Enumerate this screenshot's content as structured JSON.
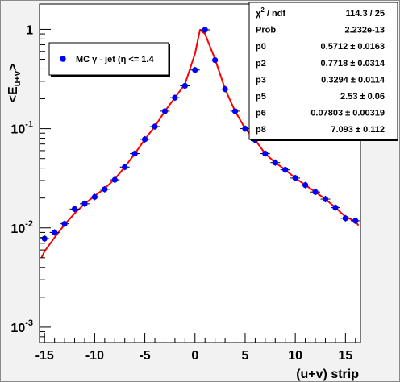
{
  "chart_data": {
    "type": "scatter",
    "xlabel": "(u+v) strip",
    "ylabel": "<E_{u+v}>",
    "xlim": [
      -15.5,
      16.5
    ],
    "ylim": [
      0.0007,
      1.8
    ],
    "yscale": "log",
    "grid": false,
    "x_ticks": [
      "-15",
      "-10",
      "-5",
      "0",
      "5",
      "10",
      "15"
    ],
    "y_ticks": [
      {
        "base": "10",
        "exp": "-3",
        "value": 0.001
      },
      {
        "base": "10",
        "exp": "-2",
        "value": 0.01
      },
      {
        "base": "10",
        "exp": "-1",
        "value": 0.1
      },
      {
        "base": "1",
        "exp": "",
        "value": 1
      }
    ],
    "legend": {
      "position": "top-left",
      "entries": [
        {
          "label": "MC γ - jet (η <= 1.4",
          "color": "#0000ff",
          "marker": "circle"
        }
      ]
    },
    "series": [
      {
        "name": "MC γ - jet (η <= 1.4",
        "color": "#0000ff",
        "x": [
          -15,
          -14,
          -13,
          -12,
          -11,
          -10,
          -9,
          -8,
          -7,
          -6,
          -5,
          -4,
          -3,
          -2,
          -1,
          0,
          1,
          2,
          3,
          4,
          5,
          6,
          7,
          8,
          9,
          10,
          11,
          12,
          13,
          14,
          15,
          16
        ],
        "y": [
          0.0078,
          0.009,
          0.011,
          0.0155,
          0.0175,
          0.0205,
          0.0245,
          0.0305,
          0.041,
          0.056,
          0.078,
          0.105,
          0.15,
          0.205,
          0.27,
          0.39,
          0.99,
          0.49,
          0.25,
          0.15,
          0.1,
          0.077,
          0.056,
          0.0455,
          0.0385,
          0.0318,
          0.027,
          0.023,
          0.0195,
          0.016,
          0.0125,
          0.0118
        ]
      }
    ],
    "fit": {
      "color": "#ff0000",
      "x": [
        -15.3,
        -15,
        -14,
        -13,
        -12,
        -11,
        -10,
        -9,
        -8,
        -7,
        -6,
        -5,
        -4,
        -3,
        -2,
        -1,
        0,
        0.5,
        1,
        2,
        3,
        4,
        5,
        6,
        7,
        8,
        9,
        10,
        11,
        12,
        13,
        14,
        15,
        16,
        16.3
      ],
      "y": [
        0.005,
        0.0058,
        0.008,
        0.0108,
        0.014,
        0.0175,
        0.021,
        0.025,
        0.031,
        0.041,
        0.056,
        0.078,
        0.105,
        0.15,
        0.205,
        0.28,
        0.57,
        0.99,
        0.9,
        0.5,
        0.25,
        0.15,
        0.1,
        0.077,
        0.056,
        0.0455,
        0.0385,
        0.0318,
        0.027,
        0.023,
        0.0195,
        0.016,
        0.013,
        0.0116,
        0.0106
      ]
    },
    "stats": [
      {
        "label": "χ² / ndf",
        "value": "114.3 / 25"
      },
      {
        "label": "Prob",
        "value": "2.232e-13"
      },
      {
        "label": "p0",
        "value": "0.5712 ± 0.0163"
      },
      {
        "label": "p2",
        "value": "0.7718 ± 0.0314"
      },
      {
        "label": "p3",
        "value": "0.3294 ± 0.0114"
      },
      {
        "label": "p5",
        "value": "2.53 ± 0.06"
      },
      {
        "label": "p6",
        "value": "0.07803 ± 0.00319"
      },
      {
        "label": "p8",
        "value": "7.093 ± 0.112"
      }
    ]
  }
}
